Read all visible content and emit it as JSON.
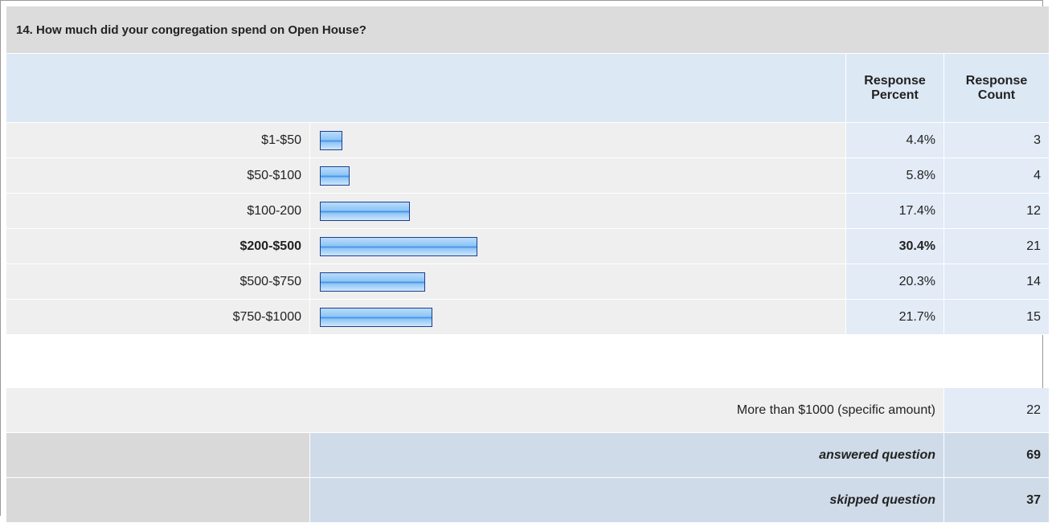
{
  "chart_data": {
    "type": "bar",
    "title": "14. How much did your congregation spend on Open House?",
    "column_headers": [
      "Response Percent",
      "Response Count"
    ],
    "categories": [
      "$1-$50",
      "$50-$100",
      "$100-200",
      "$200-$500",
      "$500-$750",
      "$750-$1000"
    ],
    "values": [
      4.4,
      5.8,
      17.4,
      30.4,
      20.3,
      21.7
    ],
    "value_labels": [
      "4.4%",
      "5.8%",
      "17.4%",
      "30.4%",
      "20.3%",
      "21.7%"
    ],
    "counts": [
      3,
      4,
      12,
      21,
      14,
      15
    ],
    "other_label": "More than $1000 (specific amount)",
    "other_count": 22,
    "answered_label": "answered question",
    "answered": 69,
    "skipped_label": "skipped question",
    "skipped": 37,
    "color": "#8ec5f5"
  }
}
